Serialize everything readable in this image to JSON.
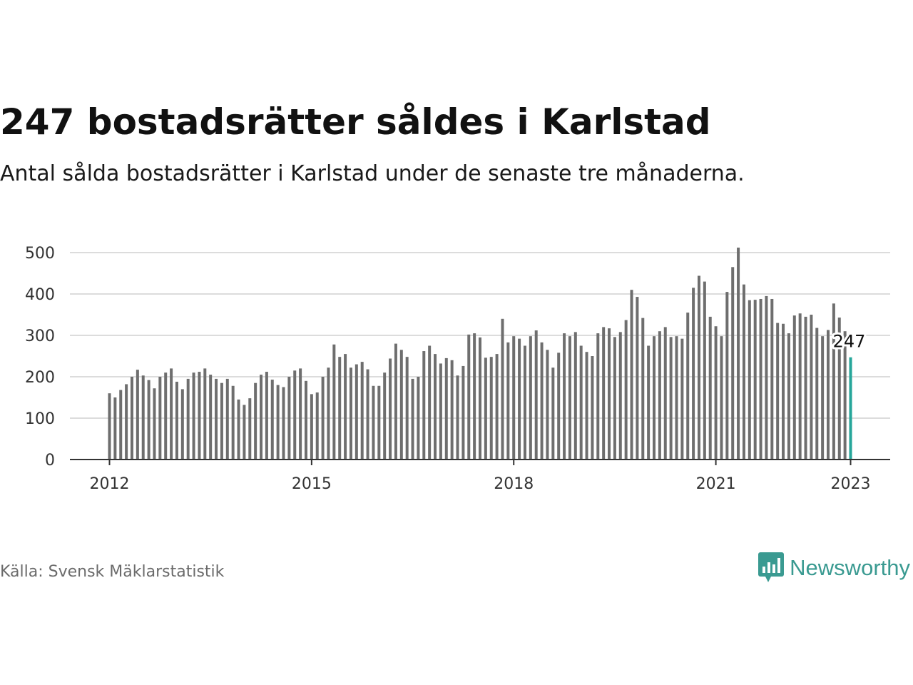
{
  "title": "247 bostadsrätter såldes i Karlstad",
  "subtitle": "Antal sålda bostadsrätter i Karlstad under de senaste tre månaderna.",
  "source": "Källa: Svensk Mäklarstatistik",
  "brand": {
    "name": "Newsworthy",
    "icon": "newsworthy-logo-icon",
    "color": "#3a9a91"
  },
  "chart_data": {
    "type": "bar",
    "grid": true,
    "ylim": [
      0,
      520
    ],
    "yticks": [
      0,
      100,
      200,
      300,
      400,
      500
    ],
    "xticks": [
      "2012",
      "2015",
      "2018",
      "2021",
      "2023"
    ],
    "x_start": "2012-01",
    "x_end": "2023-01",
    "bar_color": "#6e6e6e",
    "highlight_color": "#26a69a",
    "highlight_label": "247",
    "values": [
      160,
      150,
      168,
      182,
      200,
      217,
      203,
      192,
      172,
      200,
      210,
      220,
      188,
      170,
      195,
      210,
      212,
      220,
      205,
      195,
      185,
      195,
      178,
      145,
      132,
      148,
      185,
      205,
      212,
      193,
      180,
      175,
      200,
      215,
      220,
      190,
      158,
      162,
      200,
      222,
      278,
      248,
      255,
      222,
      230,
      236,
      218,
      178,
      178,
      210,
      244,
      280,
      265,
      248,
      195,
      200,
      262,
      275,
      255,
      232,
      245,
      240,
      203,
      226,
      302,
      305,
      295,
      246,
      248,
      255,
      340,
      283,
      298,
      292,
      275,
      298,
      312,
      283,
      265,
      222,
      258,
      305,
      298,
      308,
      275,
      260,
      250,
      305,
      320,
      317,
      296,
      308,
      337,
      410,
      393,
      342,
      275,
      298,
      310,
      320,
      296,
      298,
      292,
      355,
      415,
      444,
      430,
      345,
      322,
      298,
      405,
      465,
      512,
      423,
      385,
      386,
      388,
      395,
      388,
      330,
      328,
      305,
      348,
      353,
      345,
      350,
      318,
      298,
      313,
      377,
      343,
      310,
      247
    ]
  }
}
